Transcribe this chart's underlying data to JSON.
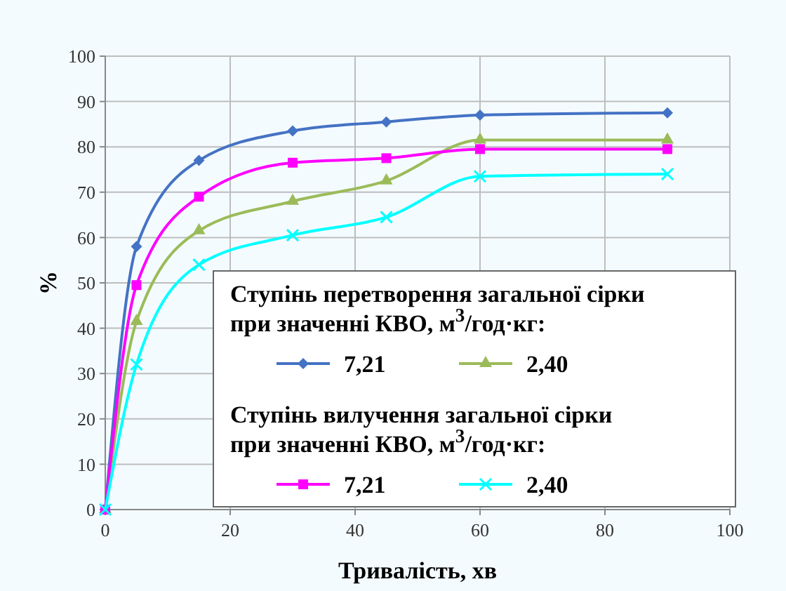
{
  "chart_data": {
    "type": "line",
    "xlabel": "Тривалість, хв",
    "ylabel": "%",
    "legend_title": [
      "Ступінь перетворення загальної сірки при значенні КВО, м$^{3}$/год·кг:",
      "Ступінь вилучення загальної сірки при значенні КВО, м$^{3}$/год·кг:"
    ],
    "x": [
      0,
      5,
      15,
      30,
      45,
      60,
      90
    ],
    "series": [
      {
        "name": "7,21",
        "color": "#4472c4",
        "marker": "diamond",
        "values": [
          0,
          58,
          77,
          83.5,
          85.5,
          87,
          87.5
        ]
      },
      {
        "name": "2,40",
        "color": "#9bbb59",
        "marker": "triangle",
        "values": [
          0,
          41.5,
          61.5,
          68,
          72.5,
          81.5,
          81.5
        ]
      },
      {
        "name": "7,21",
        "color": "#ff00ff",
        "marker": "square",
        "values": [
          0,
          49.5,
          69,
          76.5,
          77.5,
          79.5,
          79.5
        ]
      },
      {
        "name": "2,40",
        "color": "#00ffff",
        "marker": "cross",
        "values": [
          0,
          32,
          54,
          60.5,
          64.5,
          73.5,
          74
        ]
      }
    ],
    "xlim": [
      0,
      100
    ],
    "xticks": [
      0,
      20,
      40,
      60,
      80,
      100
    ],
    "ylim": [
      0,
      100
    ],
    "yticks": [
      0,
      10,
      20,
      30,
      40,
      50,
      60,
      70,
      80,
      90,
      100
    ],
    "grid": true,
    "legend": "bottom right",
    "line_style": "solid"
  }
}
